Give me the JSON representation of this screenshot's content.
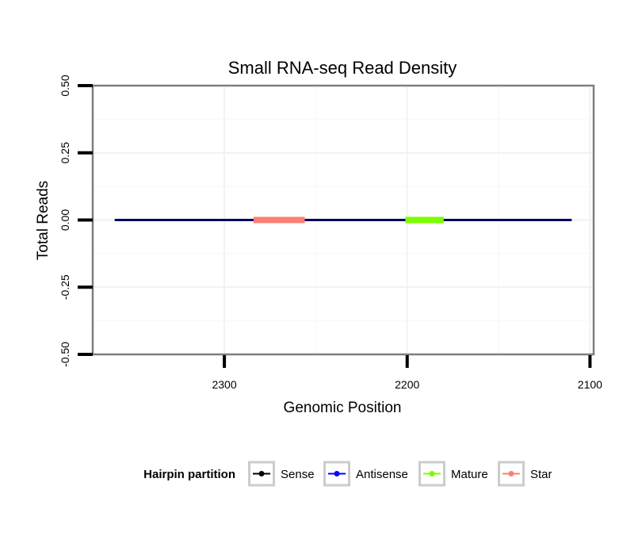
{
  "chart_data": {
    "type": "line",
    "title": "Small RNA-seq Read Density",
    "xlabel": "Genomic Position",
    "ylabel": "Total Reads",
    "x_reversed": true,
    "xlim": [
      2372,
      2098
    ],
    "ylim": [
      -0.5,
      0.5
    ],
    "x_ticks": [
      2300,
      2200,
      2100
    ],
    "x_tick_labels": [
      "2300",
      "2200",
      "2100"
    ],
    "y_ticks": [
      0.5,
      0.25,
      0.0,
      -0.25,
      -0.5
    ],
    "y_tick_labels": [
      "0.50",
      "0.25",
      "0.00",
      "-0.25",
      "-0.50"
    ],
    "grid": true,
    "series": [
      {
        "name": "Sense",
        "color": "#000000",
        "segments": [
          {
            "x_start": 2360,
            "x_end": 2110,
            "y": 0
          }
        ]
      },
      {
        "name": "Antisense",
        "color": "#0000ff",
        "segments": [
          {
            "x_start": 2360,
            "x_end": 2110,
            "y": 0
          }
        ]
      },
      {
        "name": "Mature",
        "color": "#7cfc00",
        "segments": [
          {
            "x_start": 2201,
            "x_end": 2180,
            "y": 0
          }
        ]
      },
      {
        "name": "Star",
        "color": "#fa8072",
        "segments": [
          {
            "x_start": 2284,
            "x_end": 2256,
            "y": 0
          }
        ]
      }
    ],
    "legend": {
      "title": "Hairpin partition",
      "placement": "bottom",
      "entries": [
        "Sense",
        "Antisense",
        "Mature",
        "Star"
      ]
    }
  }
}
